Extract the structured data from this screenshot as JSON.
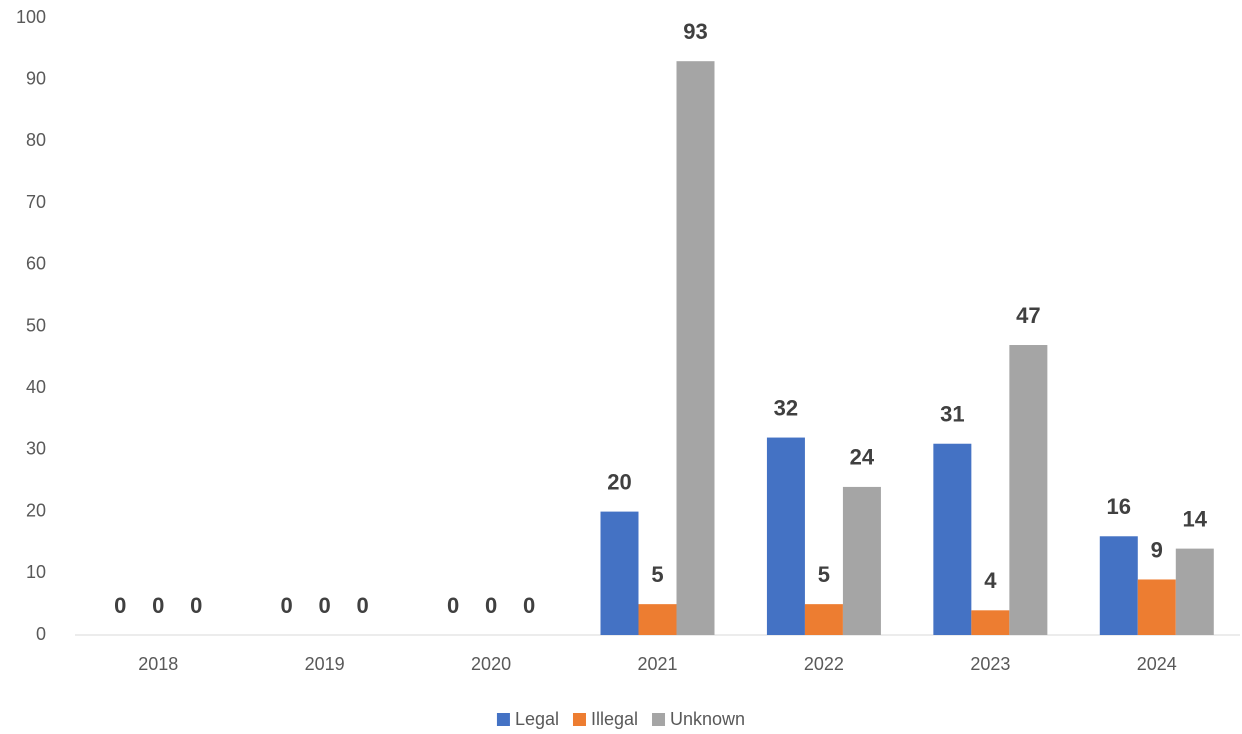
{
  "chart_data": {
    "type": "bar",
    "categories": [
      "2018",
      "2019",
      "2020",
      "2021",
      "2022",
      "2023",
      "2024"
    ],
    "series": [
      {
        "name": "Legal",
        "color": "#4472c4",
        "values": [
          0,
          0,
          0,
          20,
          32,
          31,
          16
        ]
      },
      {
        "name": "Illegal",
        "color": "#ed7d31",
        "values": [
          0,
          0,
          0,
          5,
          5,
          4,
          9
        ]
      },
      {
        "name": "Unknown",
        "color": "#a5a5a5",
        "values": [
          0,
          0,
          0,
          93,
          24,
          47,
          14
        ]
      }
    ],
    "ylim": [
      0,
      100
    ],
    "yticks": [
      0,
      10,
      20,
      30,
      40,
      50,
      60,
      70,
      80,
      90,
      100
    ],
    "grid": false,
    "legend": "bottom"
  }
}
